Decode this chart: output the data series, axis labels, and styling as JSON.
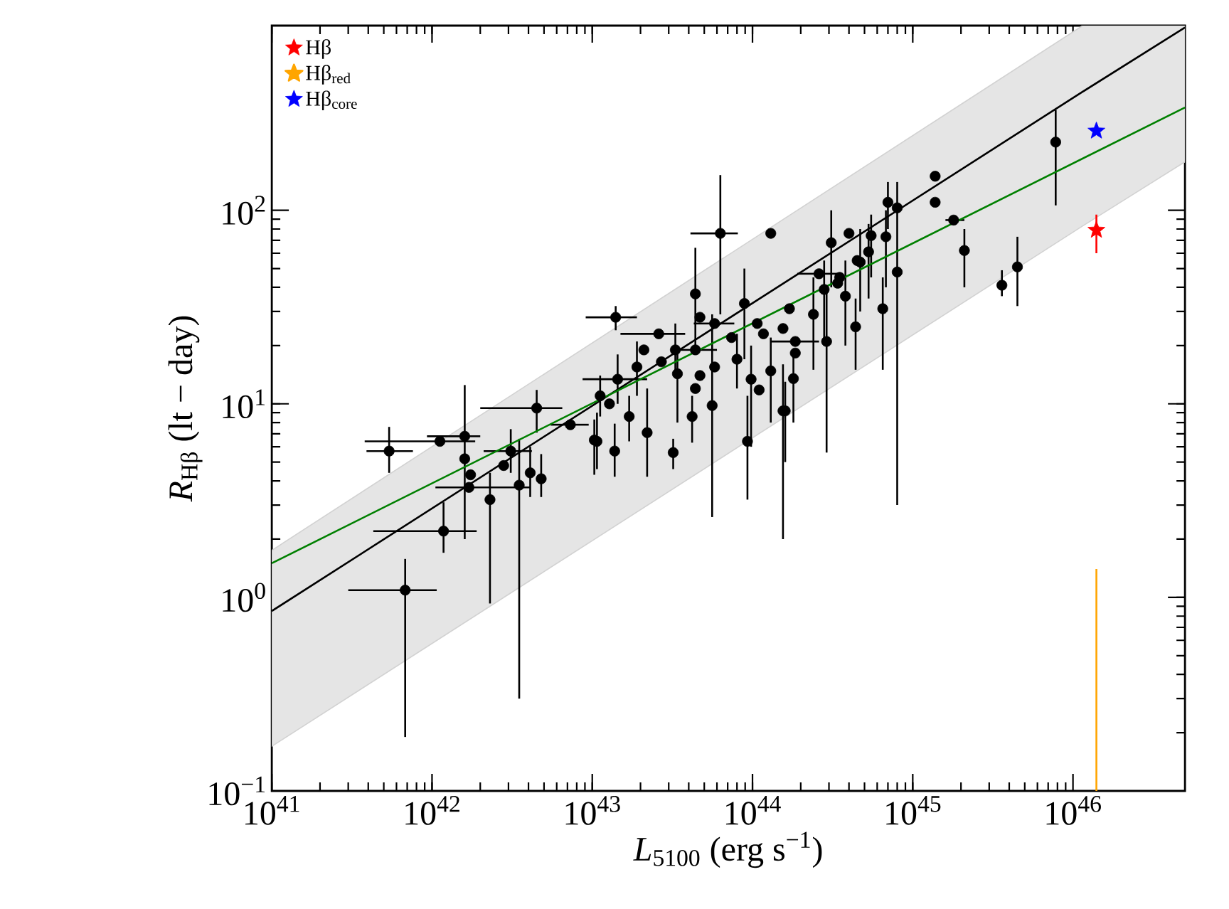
{
  "chart_data": {
    "type": "scatter",
    "log": "xy",
    "xlabel": "*L*$_{5100}$ (erg s$^{−1}$)",
    "ylabel": "*R*$_{Hβ}$ (lt − day)",
    "xlim": [
      1e+41,
      5e+46
    ],
    "ylim": [
      0.1,
      900
    ],
    "xticks": [
      {
        "value": 1e+41,
        "label": "10$^{41}$"
      },
      {
        "value": 1e+42,
        "label": "10$^{42}$"
      },
      {
        "value": 1e+43,
        "label": "10$^{43}$"
      },
      {
        "value": 1e+44,
        "label": "10$^{44}$"
      },
      {
        "value": 1e+45,
        "label": "10$^{45}$"
      },
      {
        "value": 1e+46,
        "label": "10$^{46}$"
      }
    ],
    "yticks": [
      {
        "value": 0.1,
        "label": "10$^{−1}$"
      },
      {
        "value": 1,
        "label": "10$^{0}$"
      },
      {
        "value": 10,
        "label": "10$^{1}$"
      },
      {
        "value": 100,
        "label": "10$^{2}$"
      }
    ],
    "legend": "top left",
    "series": [
      {
        "marker": "circle",
        "color": "#000000",
        "x": [
          5.4e+41,
          6.8e+41,
          1.12e+42,
          1.6e+42,
          1.6e+42,
          1.74e+42,
          1.7e+42,
          1.18e+42,
          2.3e+42,
          3.5e+42,
          3.1e+42,
          2.8e+42,
          4.1e+42,
          4.8e+42,
          4.5e+42,
          7.3e+42,
          1.07e+43,
          6.3e+43,
          1.3e+44,
          1.4e+43,
          2.6e+43,
          4.4e+43,
          4.7e+43,
          3.3e+43,
          2.1e+43,
          1.9e+43,
          1.44e+43,
          1.12e+43,
          1.28e+43,
          1.7e+43,
          1.03e+43,
          1.38e+43,
          2.2e+43,
          3.2e+43,
          2.7e+43,
          3.4e+43,
          4.4e+43,
          4.4e+43,
          4.7e+43,
          4.2e+43,
          5.6e+43,
          5.8e+43,
          5.8e+43,
          7.4e+43,
          8e+43,
          8.9e+43,
          1.07e+44,
          9.8e+43,
          1.1e+44,
          9.3e+43,
          1.3e+44,
          1.55e+44,
          1.6e+44,
          1.17e+44,
          1.55e+44,
          1.7e+44,
          1.85e+44,
          1.85e+44,
          1.8e+44,
          2.4e+44,
          2.8e+44,
          2.6e+44,
          3.1e+44,
          2.9e+44,
          3.5e+44,
          3.8e+44,
          4.4e+44,
          4e+44,
          4.5e+44,
          5.5e+44,
          7e+44,
          8e+44,
          8e+44,
          6.8e+44,
          4.7e+44,
          5.3e+44,
          3.4e+44,
          6.5e+44,
          1.38e+45,
          1.38e+45,
          1.8e+45,
          2.1e+45,
          3.6e+45,
          4.5e+45,
          7.8e+45
        ],
        "values": [
          5.7,
          1.09,
          6.4,
          6.8,
          5.2,
          4.3,
          3.7,
          2.2,
          3.2,
          3.8,
          5.7,
          4.8,
          4.4,
          4.1,
          9.5,
          7.8,
          6.4,
          76,
          76,
          28,
          23,
          37,
          28,
          19,
          19,
          15.5,
          13.4,
          11,
          10,
          8.6,
          6.5,
          5.7,
          7.1,
          5.6,
          16.5,
          14.3,
          19,
          12,
          14,
          8.6,
          9.8,
          26,
          15.5,
          22,
          17,
          33,
          26,
          13.4,
          11.8,
          6.4,
          14.8,
          9.2,
          9.2,
          23,
          24.5,
          31,
          21,
          18.3,
          13.5,
          29,
          39,
          47,
          68,
          21,
          45,
          36,
          25,
          76,
          55,
          74,
          110,
          103,
          48,
          73,
          54,
          61,
          42,
          31,
          150,
          110,
          89,
          62,
          41,
          51,
          225
        ],
        "errors": [
          [
            4.4,
            7.6
          ],
          [
            0.19,
            1.58
          ],
          null,
          [
            2.0,
            12.5
          ],
          null,
          null,
          null,
          [
            1.7,
            3.1
          ],
          [
            0.93,
            4.4
          ],
          [
            0.3,
            6.6
          ],
          [
            4.4,
            7.4
          ],
          null,
          [
            3.3,
            6.0
          ],
          [
            3.3,
            5.5
          ],
          [
            7.1,
            11.8
          ],
          null,
          [
            4.6,
            9.0
          ],
          [
            29,
            152
          ],
          null,
          [
            24,
            32
          ],
          null,
          [
            19,
            64
          ],
          null,
          [
            14,
            26
          ],
          null,
          [
            11,
            21
          ],
          [
            10,
            18
          ],
          [
            8.6,
            14
          ],
          null,
          [
            6.4,
            11
          ],
          [
            4.3,
            8.3
          ],
          [
            4.2,
            7.9
          ],
          [
            4.2,
            12
          ],
          [
            4.6,
            6.6
          ],
          null,
          [
            8,
            20
          ],
          null,
          null,
          null,
          [
            6.3,
            11
          ],
          [
            2.6,
            29
          ],
          null,
          null,
          null,
          [
            12,
            23
          ],
          [
            17,
            50
          ],
          null,
          [
            6,
            20
          ],
          null,
          [
            3.2,
            11
          ],
          [
            8,
            22
          ],
          [
            2.0,
            16
          ],
          [
            5,
            13
          ],
          null,
          null,
          null,
          null,
          null,
          [
            8,
            19
          ],
          [
            15,
            45
          ],
          [
            20,
            55
          ],
          null,
          [
            40,
            100
          ],
          [
            5.6,
            40
          ],
          null,
          [
            20,
            55
          ],
          [
            15,
            35
          ],
          null,
          null,
          [
            45,
            95
          ],
          [
            80,
            140
          ],
          [
            3,
            140
          ],
          null,
          [
            40,
            100
          ],
          [
            30,
            80
          ],
          [
            35,
            85
          ],
          null,
          [
            15,
            45
          ],
          null,
          null,
          null,
          [
            40,
            80
          ],
          [
            36,
            49
          ],
          [
            32,
            73
          ],
          [
            106,
            330
          ]
        ],
        "xerrors": [
          [
            3.9e+41,
            7.6e+41
          ],
          [
            3e+41,
            1.07e+42
          ],
          [
            3.8e+41,
            1.86e+42
          ],
          [
            9.3e+41,
            2e+42
          ],
          null,
          null,
          [
            1.05e+42,
            4.1e+42
          ],
          [
            4.3e+41,
            1.9e+42
          ],
          null,
          null,
          [
            2.1e+42,
            4.2e+42
          ],
          null,
          null,
          null,
          [
            2e+42,
            6.5e+42
          ],
          [
            5.5e+42,
            9.5e+42
          ],
          null,
          [
            4.1e+43,
            8.1e+43
          ],
          null,
          [
            9.1e+42,
            1.9e+43
          ],
          [
            1.5e+43,
            3.8e+43
          ],
          null,
          null,
          null,
          null,
          null,
          [
            8.7e+42,
            2.2e+43
          ],
          null,
          null,
          null,
          null,
          null,
          null,
          null,
          null,
          null,
          [
            3.3e+43,
            6e+43
          ],
          null,
          null,
          null,
          null,
          [
            4.3e+43,
            7.7e+43
          ],
          null,
          null,
          null,
          null,
          null,
          null,
          null,
          null,
          null,
          null,
          null,
          null,
          null,
          null,
          [
            1.3e+44,
            2.6e+44
          ],
          null,
          null,
          null,
          null,
          [
            1.9e+44,
            3.5e+44
          ],
          null,
          null,
          null,
          null,
          null,
          null,
          null,
          null,
          null,
          null,
          null,
          null,
          null,
          null,
          null,
          null,
          null,
          null,
          [
            1.6e+45,
            2.1e+45
          ],
          null,
          null,
          null,
          null
        ]
      },
      {
        "type": "scatter",
        "marker": "star",
        "name": "Hβ",
        "color": "#ff0000",
        "x": [
          1.4e+46
        ],
        "values": [
          79
        ],
        "errors": [
          [
            60,
            95
          ]
        ]
      },
      {
        "type": "line",
        "name": "Hβ$_{red}$",
        "color": "#ffa500",
        "x": [
          1.4e+46,
          1.4e+46
        ],
        "values": [
          0.1,
          1.4
        ]
      },
      {
        "type": "scatter",
        "marker": "star",
        "name": "Hβ$_{core}$",
        "color": "#0000ff",
        "x": [
          1.4e+46
        ],
        "values": [
          257
        ]
      },
      {
        "type": "line",
        "color": "#000000",
        "x": [
          1e+41,
          1.15e+46,
          5e+46
        ],
        "values": [
          0.85,
          410,
          880
        ],
        "lower": [
          0.17,
          83,
          178
        ],
        "upper": [
          1.75,
          900,
          900
        ]
      },
      {
        "type": "line",
        "color": "#008000",
        "x": [
          1e+41,
          5e+46
        ],
        "values": [
          1.5,
          340
        ]
      }
    ]
  }
}
